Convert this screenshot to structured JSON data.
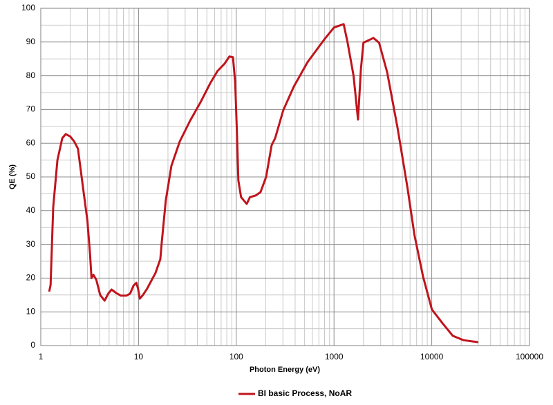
{
  "chart_data": {
    "type": "line",
    "xlabel": "Photon Energy (eV)",
    "ylabel": "QE (%)",
    "x": [
      1.22,
      1.26,
      1.34,
      1.48,
      1.66,
      1.8,
      2.0,
      2.2,
      2.4,
      2.7,
      3.0,
      3.2,
      3.3,
      3.45,
      3.7,
      4.05,
      4.5,
      4.9,
      5.3,
      5.9,
      6.6,
      7.5,
      8.2,
      8.9,
      9.5,
      9.9,
      10.3,
      11.1,
      12.2,
      14.9,
      16.7,
      17.3,
      19.0,
      21.7,
      26.4,
      33.6,
      42.8,
      54.7,
      64.3,
      76,
      85,
      92.5,
      97.5,
      102,
      105,
      112,
      128,
      138,
      158,
      177,
      202,
      230,
      250,
      302,
      388,
      535,
      807,
      1000,
      1255,
      1374,
      1585,
      1760,
      1885,
      2000,
      2530,
      2890,
      3500,
      4470,
      5630,
      6650,
      8140,
      10030,
      12900,
      16400,
      21100,
      29900
    ],
    "series": [
      {
        "name": "BI basic Process, NoAR",
        "color": "#c0141c",
        "values": [
          16,
          18,
          41,
          55,
          61.5,
          62.7,
          62,
          60.5,
          58.4,
          47,
          37,
          26.6,
          20,
          21,
          19.5,
          15,
          13.3,
          15.4,
          16.6,
          15.6,
          14.8,
          14.8,
          15.4,
          17.8,
          18.6,
          16.8,
          13.9,
          15,
          16.8,
          21.5,
          25.6,
          30.7,
          43,
          53.3,
          60.5,
          66.6,
          72,
          78,
          81.4,
          83.6,
          85.7,
          85.5,
          78,
          61.5,
          49,
          44,
          42,
          44,
          44.5,
          45.5,
          50,
          59.4,
          61.5,
          69.7,
          76.8,
          84,
          91,
          94.3,
          95.3,
          90,
          80,
          67,
          82,
          89.8,
          91.2,
          89.8,
          81,
          64.5,
          47,
          32.8,
          20.5,
          10.7,
          6.6,
          2.9,
          1.6,
          1.0
        ]
      }
    ],
    "xlog": true,
    "xlim": [
      1,
      100000
    ],
    "xticks": [
      1,
      10,
      100,
      1000,
      10000,
      100000
    ],
    "ylim": [
      0,
      100
    ],
    "yticks": [
      0,
      10,
      20,
      30,
      40,
      50,
      60,
      70,
      80,
      90,
      100
    ],
    "grid": true,
    "legend": "bottom"
  }
}
